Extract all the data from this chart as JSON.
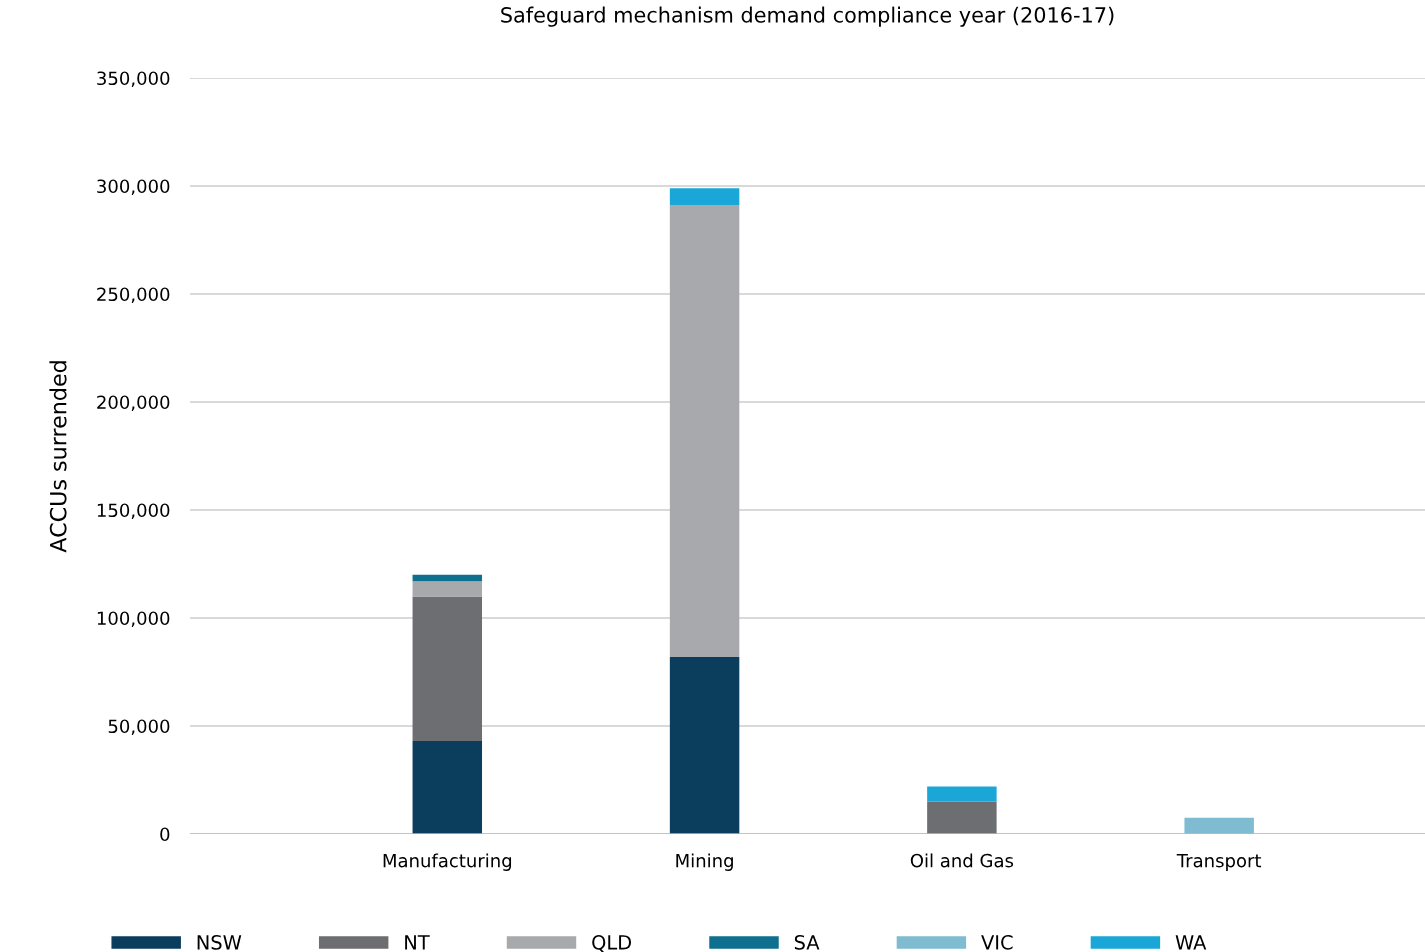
{
  "chart_data": {
    "type": "bar",
    "title": "Safeguard mechanism demand compliance year (2016-17)",
    "ylabel": "ACCUs surrended",
    "categories": [
      "Manufacturing",
      "Mining",
      "Oil and Gas",
      "Transport"
    ],
    "stacked": true,
    "series": [
      {
        "name": "NSW",
        "color": "#0b3d5c",
        "values": [
          43000,
          82000,
          null,
          null
        ]
      },
      {
        "name": "NT",
        "color": "#6d6e71",
        "values": [
          67000,
          null,
          15000,
          null
        ]
      },
      {
        "name": "QLD",
        "color": "#a7a9ac",
        "values": [
          7000,
          209000,
          null,
          null
        ]
      },
      {
        "name": "SA",
        "color": "#0f6f8f",
        "values": [
          3000,
          null,
          null,
          null
        ]
      },
      {
        "name": "VIC",
        "color": "#7fbcd2",
        "values": [
          null,
          null,
          null,
          7500
        ]
      },
      {
        "name": "WA",
        "color": "#1aa7d8",
        "values": [
          null,
          8000,
          7000,
          null
        ]
      }
    ],
    "ylim": [
      0,
      350000
    ],
    "yticks": [
      {
        "value": 0,
        "label": "0"
      },
      {
        "value": 50000,
        "label": "50,000"
      },
      {
        "value": 100000,
        "label": "100,000"
      },
      {
        "value": 150000,
        "label": "150,000"
      },
      {
        "value": 200000,
        "label": "200,000"
      },
      {
        "value": 250000,
        "label": "250,000"
      },
      {
        "value": 300000,
        "label": "300,000"
      },
      {
        "value": 350000,
        "label": "350,000"
      }
    ],
    "grid": "y",
    "legend": "bottom"
  }
}
